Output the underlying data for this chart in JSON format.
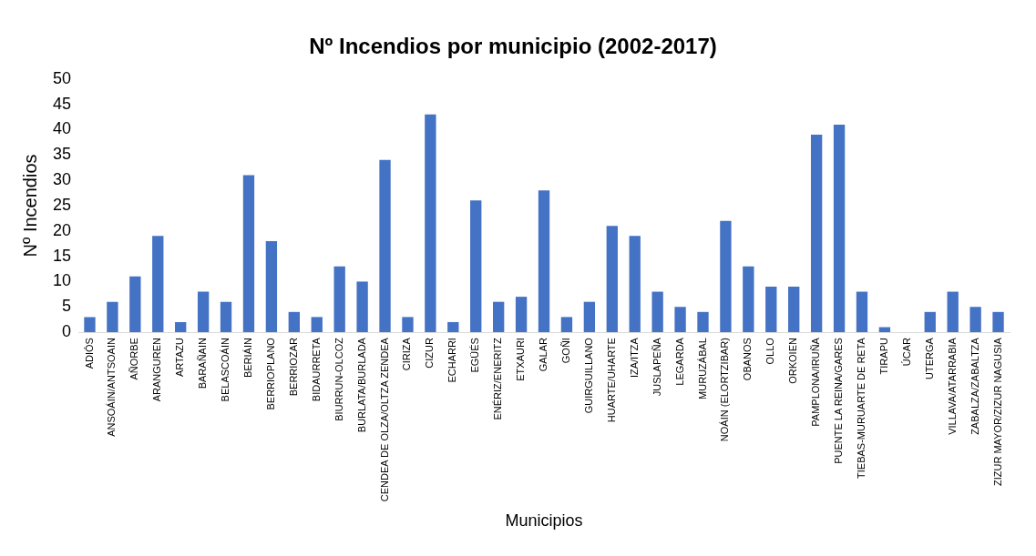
{
  "chart_data": {
    "type": "bar",
    "title": "Nº Incendios por municipio (2002-2017)",
    "xlabel": "Municipios",
    "ylabel": "Nº Incendios",
    "categories": [
      "ADIÓS",
      "ANSOÁIN/ANTSOAIN",
      "AÑORBE",
      "ARANGUREN",
      "ARTAZU",
      "BARAÑAIN",
      "BELASCOÁIN",
      "BERIÁIN",
      "BERRIOPLANO",
      "BERRIOZAR",
      "BIDAURRETA",
      "BIURRUN-OLCOZ",
      "BURLATA/BURLADA",
      "CENDEA DE OLZA/OLTZA ZENDEA",
      "CIRIZA",
      "CIZUR",
      "ECHARRI",
      "EGÜÉS",
      "ENÉRIZ/ENERITZ",
      "ETXAURI",
      "GALAR",
      "GOÑI",
      "GUIRGUILLANO",
      "HUARTE/UHARTE",
      "IZA/ITZA",
      "JUSLAPEÑA",
      "LEGARDA",
      "MURUZÁBAL",
      "NOÁIN (ELORTZIBAR)",
      "OBANOS",
      "OLLO",
      "ORKOIEN",
      "PAMPLONA/IRUÑA",
      "PUENTE LA REINA/GARES",
      "TIEBAS-MURUARTE DE RETA",
      "TIRAPU",
      "ÚCAR",
      "UTERGA",
      "VILLAVA/ATARRABIA",
      "ZABALZA/ZABALTZA",
      "ZIZUR MAYOR/ZIZUR NAGUSIA"
    ],
    "values": [
      3,
      6,
      11,
      19,
      2,
      8,
      6,
      31,
      18,
      4,
      3,
      13,
      10,
      34,
      3,
      43,
      2,
      26,
      6,
      7,
      28,
      3,
      6,
      21,
      19,
      8,
      5,
      4,
      22,
      13,
      9,
      9,
      39,
      41,
      8,
      1,
      0,
      4,
      8,
      5,
      4
    ],
    "color": "#4472c4",
    "ylim": [
      0,
      50
    ],
    "yticks": [
      0,
      5,
      10,
      15,
      20,
      25,
      30,
      35,
      40,
      45,
      50
    ],
    "grid": false,
    "legend": false
  }
}
